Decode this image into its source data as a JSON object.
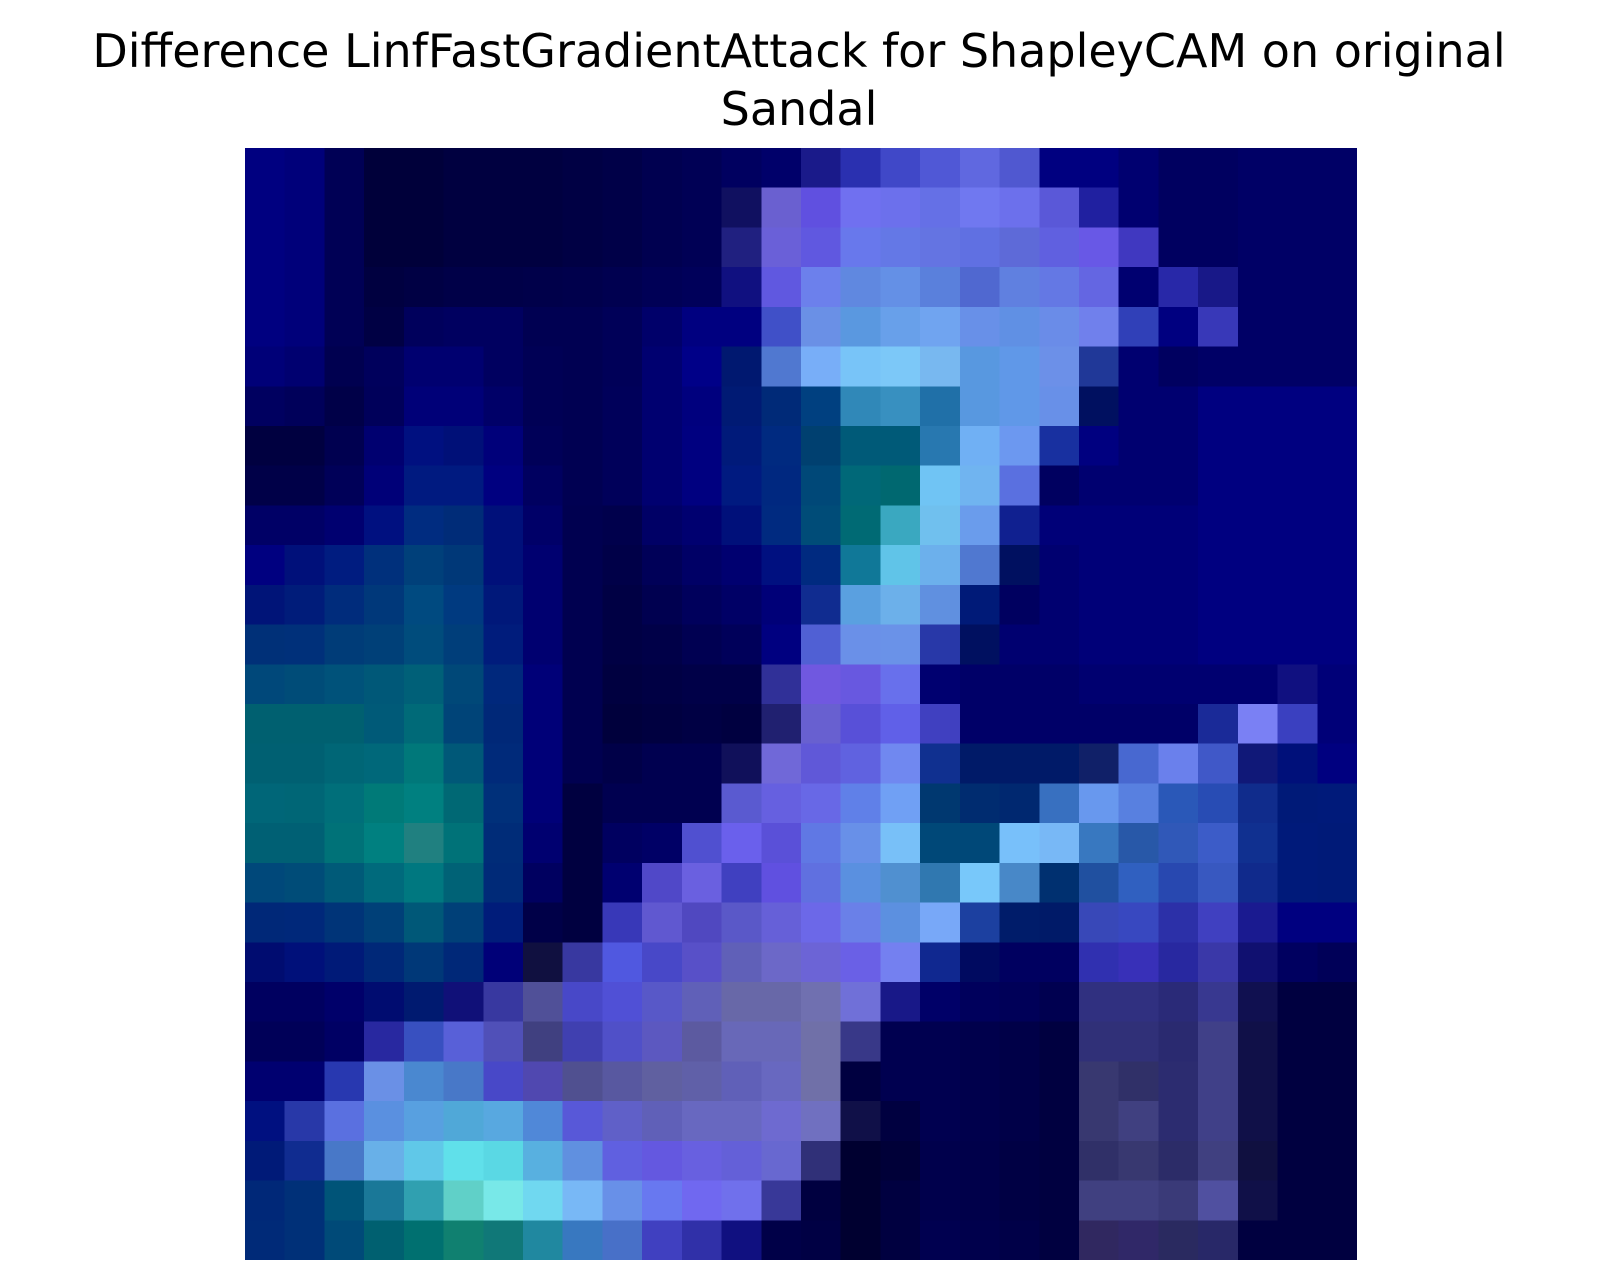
{
  "chart_data": {
    "type": "heatmap",
    "title_line1": "Difference LinfFastGradientAttack for ShapleyCAM on original",
    "title_line2": "Sandal",
    "rows": 28,
    "cols": 28,
    "axes_visible": false,
    "grid": false,
    "key_colors": {
      "dark": "#000033",
      "navy": "#000066",
      "blue": "#001a80",
      "teal": "#00707a",
      "violet": "#6a60dc",
      "light_blue": "#7cc8f8",
      "cyan": "#7aecec"
    },
    "cells": [
      [
        "#000080",
        "#00007a",
        "#000055",
        "#00003a",
        "#00003a",
        "#000040",
        "#000040",
        "#000040",
        "#000044",
        "#000048",
        "#000050",
        "#000055",
        "#000060",
        "#00006a",
        "#1a1a8a",
        "#2a30b0",
        "#4048c8",
        "#5058d6",
        "#6068e0",
        "#5058d0",
        "#000080",
        "#000080",
        "#000070",
        "#000060",
        "#000060",
        "#000066",
        "#000066",
        "#000066"
      ],
      [
        "#000080",
        "#00007a",
        "#000055",
        "#00003a",
        "#00003a",
        "#000040",
        "#000040",
        "#000040",
        "#000044",
        "#000048",
        "#000050",
        "#000055",
        "#101060",
        "#6a60d0",
        "#6050e0",
        "#7070f0",
        "#6c70ec",
        "#6570e6",
        "#7078f0",
        "#6c70ec",
        "#5a58d8",
        "#2020a0",
        "#000070",
        "#000060",
        "#000060",
        "#000066",
        "#000066",
        "#000066"
      ],
      [
        "#000080",
        "#00007a",
        "#000055",
        "#00003a",
        "#00003a",
        "#000040",
        "#000040",
        "#000040",
        "#000044",
        "#000048",
        "#000050",
        "#000055",
        "#202080",
        "#6a60d8",
        "#6058e0",
        "#6878ec",
        "#6478e6",
        "#6474e2",
        "#6070e2",
        "#5e6ad8",
        "#6060e0",
        "#6858e6",
        "#4038c0",
        "#000060",
        "#000060",
        "#000066",
        "#000066",
        "#000066"
      ],
      [
        "#000080",
        "#00007a",
        "#000055",
        "#000040",
        "#000044",
        "#000048",
        "#000048",
        "#00004a",
        "#00004c",
        "#000050",
        "#000056",
        "#00005a",
        "#101080",
        "#6058e0",
        "#6c80ec",
        "#6088e0",
        "#6490e6",
        "#5a80dc",
        "#5068d0",
        "#6080e0",
        "#6478e4",
        "#6466e2",
        "#000070",
        "#2828a8",
        "#181888",
        "#000066",
        "#000066",
        "#000066"
      ],
      [
        "#000080",
        "#00007a",
        "#000055",
        "#000044",
        "#00005c",
        "#000060",
        "#000060",
        "#000052",
        "#000052",
        "#000058",
        "#00006a",
        "#000080",
        "#000080",
        "#4050c8",
        "#6a90e6",
        "#5a98e0",
        "#68a0ea",
        "#70a4f0",
        "#6890e8",
        "#6090e4",
        "#6a8ce8",
        "#7080ec",
        "#3040b8",
        "#000080",
        "#3838b8",
        "#000066",
        "#000066",
        "#000066"
      ],
      [
        "#000078",
        "#000070",
        "#000050",
        "#00005c",
        "#000070",
        "#000070",
        "#000060",
        "#000055",
        "#000052",
        "#000058",
        "#000070",
        "#000088",
        "#001870",
        "#5078d0",
        "#78aef8",
        "#78c4f8",
        "#7cc8f8",
        "#78b8f0",
        "#5898e0",
        "#6098e8",
        "#6c90e8",
        "#203898",
        "#000070",
        "#000060",
        "#000066",
        "#000066",
        "#000066",
        "#000066"
      ],
      [
        "#000060",
        "#00005a",
        "#000048",
        "#00005a",
        "#000078",
        "#000078",
        "#000068",
        "#000055",
        "#000052",
        "#00005a",
        "#000070",
        "#00007e",
        "#001a74",
        "#002a78",
        "#004080",
        "#3088b8",
        "#3890c0",
        "#2070a8",
        "#5898e0",
        "#6098e8",
        "#6890e8",
        "#001060",
        "#000070",
        "#000070",
        "#000080",
        "#000080",
        "#000080",
        "#000080"
      ],
      [
        "#000040",
        "#000040",
        "#000050",
        "#000070",
        "#001080",
        "#001078",
        "#00007a",
        "#000058",
        "#000052",
        "#00005a",
        "#000070",
        "#000080",
        "#001a7a",
        "#002a80",
        "#004070",
        "#005a78",
        "#005a78",
        "#2878b0",
        "#70b0f4",
        "#6c98f0",
        "#1830a0",
        "#000080",
        "#000070",
        "#000070",
        "#000080",
        "#000080",
        "#000080",
        "#000080"
      ],
      [
        "#000048",
        "#000048",
        "#000058",
        "#000078",
        "#001a80",
        "#001a80",
        "#000080",
        "#000060",
        "#000052",
        "#00005a",
        "#000070",
        "#000080",
        "#001a80",
        "#002880",
        "#004878",
        "#006878",
        "#006870",
        "#70c4f4",
        "#70b4f0",
        "#5a70e0",
        "#000060",
        "#000070",
        "#000070",
        "#000070",
        "#000080",
        "#000080",
        "#000080",
        "#000080"
      ],
      [
        "#000066",
        "#000066",
        "#000070",
        "#001080",
        "#002c80",
        "#002c78",
        "#00107a",
        "#000068",
        "#000050",
        "#00004c",
        "#000066",
        "#000070",
        "#00107a",
        "#002a80",
        "#004c78",
        "#006a74",
        "#3aa8c0",
        "#70c0ee",
        "#6a9cec",
        "#102090",
        "#000078",
        "#000078",
        "#000078",
        "#000078",
        "#000080",
        "#000080",
        "#000080",
        "#000080"
      ],
      [
        "#000080",
        "#00107a",
        "#001c80",
        "#00307c",
        "#00407a",
        "#003878",
        "#00107a",
        "#000070",
        "#000050",
        "#000048",
        "#000058",
        "#000066",
        "#000070",
        "#001080",
        "#002a80",
        "#107898",
        "#60c4e8",
        "#6cb0ec",
        "#5078d0",
        "#001060",
        "#000070",
        "#000078",
        "#000078",
        "#000078",
        "#000080",
        "#000080",
        "#000080",
        "#000080"
      ],
      [
        "#001478",
        "#001c7a",
        "#002c7c",
        "#00387a",
        "#004a80",
        "#003a80",
        "#00187a",
        "#000070",
        "#000050",
        "#000044",
        "#000050",
        "#00005c",
        "#000066",
        "#000078",
        "#102c90",
        "#5aa0e0",
        "#6cb0ea",
        "#6090e0",
        "#001a78",
        "#000060",
        "#000070",
        "#000078",
        "#000078",
        "#000078",
        "#000080",
        "#000080",
        "#000080",
        "#000080"
      ],
      [
        "#003078",
        "#00307a",
        "#003c78",
        "#004078",
        "#004c7c",
        "#003e7a",
        "#001c7c",
        "#000070",
        "#000050",
        "#000044",
        "#000048",
        "#000052",
        "#00005a",
        "#000080",
        "#5060d4",
        "#6a90e8",
        "#6a92e8",
        "#2838a8",
        "#001060",
        "#000070",
        "#000070",
        "#000078",
        "#000078",
        "#000078",
        "#000080",
        "#000080",
        "#000080",
        "#000080"
      ],
      [
        "#00487a",
        "#004c78",
        "#00527a",
        "#005878",
        "#006078",
        "#004878",
        "#00287c",
        "#000078",
        "#000050",
        "#000040",
        "#000044",
        "#000048",
        "#000048",
        "#303098",
        "#7058e0",
        "#6858e0",
        "#6870ec",
        "#000070",
        "#000068",
        "#000068",
        "#000068",
        "#000070",
        "#000070",
        "#000070",
        "#000070",
        "#000070",
        "#101080",
        "#000078"
      ],
      [
        "#006070",
        "#006070",
        "#006070",
        "#005a78",
        "#006a78",
        "#004478",
        "#002878",
        "#000078",
        "#000050",
        "#00003c",
        "#000040",
        "#000044",
        "#000040",
        "#202070",
        "#6860d0",
        "#5850d8",
        "#6060e8",
        "#4040c0",
        "#000068",
        "#000068",
        "#000068",
        "#000068",
        "#000068",
        "#000068",
        "#1a2a98",
        "#7a80f4",
        "#3a40c0",
        "#000078"
      ],
      [
        "#006072",
        "#006072",
        "#006676",
        "#00687a",
        "#00787a",
        "#005878",
        "#002a7a",
        "#000078",
        "#000050",
        "#000048",
        "#000050",
        "#000050",
        "#10105a",
        "#7068d8",
        "#6058d8",
        "#6062e0",
        "#7088f0",
        "#103090",
        "#001a68",
        "#001a68",
        "#001a68",
        "#102068",
        "#4868d0",
        "#6a80ec",
        "#4058c8",
        "#101878",
        "#00107a",
        "#000080"
      ],
      [
        "#006678",
        "#006676",
        "#006f7a",
        "#007a78",
        "#008080",
        "#006874",
        "#00307a",
        "#000078",
        "#000040",
        "#000050",
        "#000050",
        "#000050",
        "#5a5ad0",
        "#6660e0",
        "#6868e6",
        "#6080e8",
        "#70a0f4",
        "#003870",
        "#002c70",
        "#002870",
        "#3870c0",
        "#6898ee",
        "#5880e0",
        "#2a58b8",
        "#284cb4",
        "#102c8c",
        "#001a78",
        "#001a7a"
      ],
      [
        "#006074",
        "#006074",
        "#007278",
        "#008080",
        "#208080",
        "#007278",
        "#002c78",
        "#000070",
        "#000040",
        "#000060",
        "#000066",
        "#5050d0",
        "#6a60ec",
        "#5a50d8",
        "#6078e4",
        "#6890e8",
        "#78c0f8",
        "#004878",
        "#004878",
        "#78c0fa",
        "#78b8f6",
        "#3878c0",
        "#2858a8",
        "#3058b8",
        "#3c5cc8",
        "#103090",
        "#001a7a",
        "#001a78"
      ],
      [
        "#00487a",
        "#004c78",
        "#005a78",
        "#006a7c",
        "#007880",
        "#006276",
        "#002a78",
        "#000060",
        "#000040",
        "#000070",
        "#5048c8",
        "#6a60e0",
        "#4040c0",
        "#6050e0",
        "#6070e0",
        "#5a90e0",
        "#5090d0",
        "#3078b0",
        "#78c8fa",
        "#4888c8",
        "#003070",
        "#2050a0",
        "#3060c0",
        "#2848b0",
        "#3858c0",
        "#102a8c",
        "#001a7a",
        "#001a78"
      ],
      [
        "#002878",
        "#00287a",
        "#003478",
        "#004078",
        "#005878",
        "#004078",
        "#001c7a",
        "#000048",
        "#000040",
        "#3838b8",
        "#6058d0",
        "#5048c0",
        "#5a58c8",
        "#6660d8",
        "#6c68e8",
        "#6a80e8",
        "#5c90e0",
        "#78a8f8",
        "#1c40a0",
        "#001c6a",
        "#001a68",
        "#3848b8",
        "#3848c0",
        "#2c30a8",
        "#4040c0",
        "#1a1a90",
        "#000080",
        "#000080"
      ],
      [
        "#000c70",
        "#00107a",
        "#001a78",
        "#002878",
        "#003878",
        "#002878",
        "#000078",
        "#101040",
        "#3838a0",
        "#5058e0",
        "#4848c8",
        "#5850c8",
        "#6060b8",
        "#6c68c8",
        "#6c64d6",
        "#6a60e6",
        "#7480f0",
        "#102890",
        "#000a60",
        "#000060",
        "#000060",
        "#3030b0",
        "#3830b8",
        "#2828a0",
        "#3a38a8",
        "#101070",
        "#000060",
        "#000058"
      ],
      [
        "#000060",
        "#000060",
        "#00006a",
        "#000c70",
        "#001a70",
        "#101078",
        "#3838a0",
        "#505098",
        "#4848c8",
        "#5050d6",
        "#5858c8",
        "#6060b8",
        "#6868a8",
        "#6868a8",
        "#7070b0",
        "#7070d8",
        "#181888",
        "#000068",
        "#00005c",
        "#000058",
        "#000050",
        "#303080",
        "#303080",
        "#2a2a78",
        "#383890",
        "#101050",
        "#000040",
        "#000040"
      ],
      [
        "#000058",
        "#000058",
        "#000064",
        "#2828a0",
        "#3850c0",
        "#5860d8",
        "#5050b8",
        "#404080",
        "#4040b0",
        "#5050c8",
        "#5c58c0",
        "#5c5aa0",
        "#6868b8",
        "#6868b8",
        "#7070a8",
        "#383888",
        "#000050",
        "#000050",
        "#00004c",
        "#000048",
        "#000040",
        "#303078",
        "#303078",
        "#2a2a70",
        "#404088",
        "#101048",
        "#000040",
        "#000040"
      ],
      [
        "#000070",
        "#000070",
        "#2838b0",
        "#6a90e6",
        "#4a88d0",
        "#4878c8",
        "#4848c8",
        "#5048b0",
        "#505090",
        "#5858a0",
        "#6060a0",
        "#6060a8",
        "#6060b8",
        "#6868c0",
        "#7070a8",
        "#000040",
        "#000050",
        "#000050",
        "#00004c",
        "#000048",
        "#000040",
        "#383870",
        "#303068",
        "#2c2c70",
        "#404088",
        "#101048",
        "#000040",
        "#000040"
      ],
      [
        "#001080",
        "#2838a8",
        "#5a70e0",
        "#5a90e0",
        "#58a0e0",
        "#50a8d8",
        "#58a8e0",
        "#5088d8",
        "#5858d8",
        "#6060c8",
        "#6060b8",
        "#6868c0",
        "#6868c0",
        "#6e6ad0",
        "#7070c0",
        "#101048",
        "#000040",
        "#000050",
        "#00004c",
        "#000048",
        "#000040",
        "#383870",
        "#404080",
        "#2c2c70",
        "#404088",
        "#101048",
        "#000040",
        "#000040"
      ],
      [
        "#001a78",
        "#102c90",
        "#4878c8",
        "#68b0e8",
        "#60c8e8",
        "#60e0ea",
        "#5ad8e4",
        "#58b0e0",
        "#6090e0",
        "#6060e0",
        "#6458e0",
        "#6860e0",
        "#6460d8",
        "#6868d0",
        "#303078",
        "#000030",
        "#000038",
        "#00004c",
        "#00004a",
        "#000044",
        "#000040",
        "#303068",
        "#383870",
        "#2c2c68",
        "#404080",
        "#101040",
        "#000040",
        "#000040"
      ],
      [
        "#002878",
        "#003078",
        "#005478",
        "#1a7898",
        "#30a0b0",
        "#60d0c8",
        "#78e8e8",
        "#70d8f0",
        "#78b8f6",
        "#6890e8",
        "#6878f0",
        "#7068f0",
        "#7070ec",
        "#383898",
        "#000040",
        "#000030",
        "#000040",
        "#00004c",
        "#00004a",
        "#000044",
        "#000040",
        "#404080",
        "#404080",
        "#3a3a78",
        "#5050a0",
        "#101048",
        "#000040",
        "#000040"
      ],
      [
        "#002a78",
        "#003078",
        "#004a78",
        "#006070",
        "#007070",
        "#108070",
        "#107878",
        "#2088a0",
        "#3878c0",
        "#4870c8",
        "#4040c0",
        "#3030a8",
        "#101080",
        "#000048",
        "#000044",
        "#000030",
        "#000040",
        "#000050",
        "#00004c",
        "#000048",
        "#000040",
        "#302860",
        "#302868",
        "#2a2a60",
        "#282868",
        "#000040",
        "#000040",
        "#000040"
      ]
    ]
  }
}
